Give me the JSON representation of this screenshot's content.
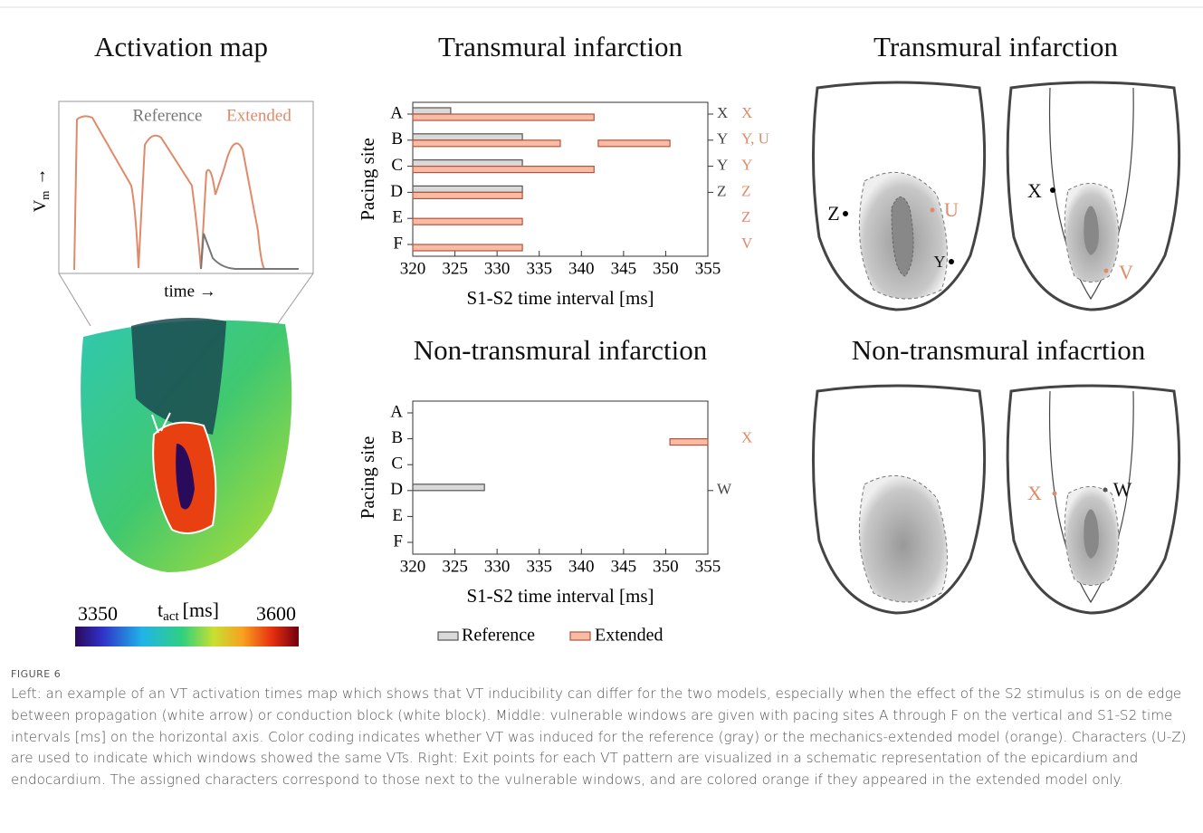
{
  "left_panel": {
    "title": "Activation map",
    "inset": {
      "legend": [
        "Reference",
        "Extended"
      ],
      "ylabel": {
        "symbol": "V",
        "subscript": "m",
        "arrow": "→"
      },
      "xlabel": "time →"
    },
    "colorbar": {
      "min": 3350,
      "max": 3600,
      "label": {
        "symbol": "t",
        "subscript": "act",
        "unit": "[ms]"
      }
    }
  },
  "chart_data": [
    {
      "type": "bar",
      "orientation": "horizontal",
      "title": "Transmural infarction",
      "xlabel": "S1-S2 time interval [ms]",
      "ylabel": "Pacing site",
      "categories": [
        "A",
        "B",
        "C",
        "D",
        "E",
        "F"
      ],
      "xlim": [
        320,
        355
      ],
      "xticks": [
        320,
        325,
        330,
        335,
        340,
        345,
        350,
        355
      ],
      "series": [
        {
          "name": "Reference",
          "color": "#d9d9d9",
          "stroke": "#555555",
          "label_color": "#444444",
          "values": [
            [
              [
                320,
                324.5
              ]
            ],
            [
              [
                320,
                333
              ]
            ],
            [
              [
                320,
                333
              ]
            ],
            [
              [
                320,
                333
              ]
            ],
            null,
            null
          ],
          "window_labels": [
            "X",
            "Y",
            "Y",
            "Z",
            null,
            null
          ]
        },
        {
          "name": "Extended",
          "color": "#f8bba5",
          "stroke": "#b5533a",
          "label_color": "#e08a6a",
          "values": [
            [
              [
                320,
                341.5
              ]
            ],
            [
              [
                320,
                337.5
              ],
              [
                342,
                350.5
              ]
            ],
            [
              [
                320,
                341.5
              ]
            ],
            [
              [
                320,
                333
              ]
            ],
            [
              [
                320,
                333
              ]
            ],
            [
              [
                320,
                333
              ]
            ]
          ],
          "window_labels": [
            "X",
            "Y, U",
            "Y",
            "Z",
            "Z",
            "V"
          ]
        }
      ]
    },
    {
      "type": "bar",
      "orientation": "horizontal",
      "title": "Non-transmural infarction",
      "xlabel": "S1-S2 time interval [ms]",
      "ylabel": "Pacing site",
      "categories": [
        "A",
        "B",
        "C",
        "D",
        "E",
        "F"
      ],
      "xlim": [
        320,
        355
      ],
      "xticks": [
        320,
        325,
        330,
        335,
        340,
        345,
        350,
        355
      ],
      "series": [
        {
          "name": "Reference",
          "color": "#d9d9d9",
          "stroke": "#555555",
          "label_color": "#444444",
          "values": [
            null,
            null,
            null,
            [
              [
                320,
                328.5
              ]
            ],
            null,
            null
          ],
          "window_labels": [
            null,
            null,
            null,
            "W",
            null,
            null
          ]
        },
        {
          "name": "Extended",
          "color": "#f8bba5",
          "stroke": "#b5533a",
          "label_color": "#e08a6a",
          "values": [
            null,
            [
              [
                350.5,
                355
              ]
            ],
            null,
            null,
            null,
            null
          ],
          "window_labels": [
            null,
            "X",
            null,
            null,
            null,
            null
          ]
        }
      ]
    }
  ],
  "right_panel": {
    "top": {
      "title": "Transmural infarction",
      "epicardium_labels": [
        "Z",
        "U",
        "Y"
      ],
      "endocardium_labels": [
        "X",
        "V"
      ]
    },
    "bottom": {
      "title": "Non-transmural infacrtion",
      "endocardium_labels": [
        "X",
        "W"
      ]
    }
  },
  "caption": {
    "label": "FIGURE 6",
    "text": "Left: an example of an VT activation times map which shows that VT inducibility can differ for the two models, especially when the effect of the S2 stimulus is on de edge between propagation (white arrow) or conduction block (white block). Middle: vulnerable windows are given with pacing sites A through F on the vertical and S1-S2 time intervals [ms] on the horizontal axis. Color coding indicates whether VT was induced for the reference (gray) or the mechanics-extended model (orange). Characters (U-Z) are used to indicate which windows showed the same VTs. Right: Exit points for each VT pattern are visualized in a schematic representation of the epicardium and endocardium. The assigned characters correspond to those next to the vulnerable windows, and are colored orange if they appeared in the extended model only."
  }
}
